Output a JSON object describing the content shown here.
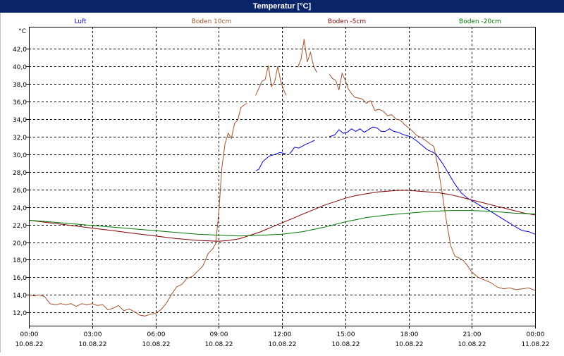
{
  "window": {
    "title": "Temperatur [°C]"
  },
  "chart_data": {
    "type": "line",
    "title": "Temperatur [°C]",
    "ylabel": "°C",
    "ylim": [
      10.5,
      44.5
    ],
    "y_ticks": [
      "12,0",
      "14,0",
      "16,0",
      "18,0",
      "20,0",
      "22,0",
      "24,0",
      "26,0",
      "28,0",
      "30,0",
      "32,0",
      "34,0",
      "36,0",
      "38,0",
      "40,0",
      "42,0"
    ],
    "y_tick_values": [
      12,
      14,
      16,
      18,
      20,
      22,
      24,
      26,
      28,
      30,
      32,
      34,
      36,
      38,
      40,
      42
    ],
    "xlim": [
      0,
      24
    ],
    "x_ticks": [
      {
        "time": "00:00",
        "date": "10.08.22",
        "h": 0
      },
      {
        "time": "03:00",
        "date": "10.08.22",
        "h": 3
      },
      {
        "time": "06:00",
        "date": "10.08.22",
        "h": 6
      },
      {
        "time": "09:00",
        "date": "10.08.22",
        "h": 9
      },
      {
        "time": "12:00",
        "date": "10.08.22",
        "h": 12
      },
      {
        "time": "15:00",
        "date": "10.08.22",
        "h": 15
      },
      {
        "time": "18:00",
        "date": "10.08.22",
        "h": 18
      },
      {
        "time": "21:00",
        "date": "10.08.22",
        "h": 21
      },
      {
        "time": "00:00",
        "date": "11.08.22",
        "h": 24
      }
    ],
    "grid": true,
    "legend_position": "top",
    "series": [
      {
        "name": "Luft",
        "color": "#0000cc",
        "segments": [
          [
            [
              10.75,
              28.1
            ],
            [
              10.9,
              28.3
            ],
            [
              11.1,
              29.2
            ],
            [
              11.4,
              29.8
            ],
            [
              11.7,
              30.0
            ],
            [
              11.9,
              30.2
            ],
            [
              12.1,
              30.1
            ],
            [
              12.2,
              30.0
            ]
          ],
          [
            [
              12.35,
              30.0
            ],
            [
              12.6,
              30.8
            ],
            [
              12.8,
              30.7
            ],
            [
              13.1,
              31.1
            ],
            [
              13.3,
              31.3
            ],
            [
              13.55,
              31.6
            ]
          ],
          [
            [
              14.25,
              32.0
            ],
            [
              14.5,
              32.2
            ],
            [
              14.7,
              32.8
            ],
            [
              14.9,
              32.4
            ],
            [
              15.1,
              32.5
            ],
            [
              15.3,
              32.9
            ],
            [
              15.5,
              32.6
            ],
            [
              15.7,
              32.9
            ],
            [
              15.9,
              32.5
            ],
            [
              16.1,
              32.8
            ],
            [
              16.3,
              33.1
            ],
            [
              16.5,
              33.0
            ],
            [
              16.7,
              32.6
            ],
            [
              16.9,
              32.6
            ],
            [
              17.1,
              32.9
            ],
            [
              17.3,
              32.6
            ],
            [
              17.5,
              32.5
            ],
            [
              17.8,
              32.2
            ],
            [
              18.1,
              32.0
            ],
            [
              18.4,
              31.5
            ],
            [
              18.7,
              30.9
            ],
            [
              18.9,
              30.5
            ],
            [
              19.1,
              30.3
            ],
            [
              19.3,
              30.0
            ],
            [
              19.6,
              29.0
            ],
            [
              19.9,
              27.8
            ],
            [
              20.2,
              26.6
            ],
            [
              20.5,
              25.6
            ],
            [
              20.8,
              25.0
            ],
            [
              21.1,
              24.6
            ],
            [
              21.5,
              24.0
            ],
            [
              21.9,
              23.5
            ],
            [
              22.3,
              22.9
            ],
            [
              22.7,
              22.3
            ],
            [
              23.1,
              21.7
            ],
            [
              23.4,
              21.3
            ],
            [
              23.7,
              21.2
            ],
            [
              24.0,
              20.9
            ]
          ]
        ]
      },
      {
        "name": "Boden 10cm",
        "color": "#a0522d",
        "segments": [
          [
            [
              0,
              14.0
            ],
            [
              0.25,
              13.9
            ],
            [
              0.5,
              14.0
            ],
            [
              0.75,
              13.8
            ],
            [
              1.0,
              13.0
            ],
            [
              1.25,
              12.9
            ],
            [
              1.5,
              13.0
            ],
            [
              1.75,
              12.9
            ],
            [
              2.0,
              13.0
            ],
            [
              2.25,
              12.7
            ],
            [
              2.5,
              13.0
            ],
            [
              2.75,
              12.9
            ],
            [
              3.0,
              13.0
            ],
            [
              3.25,
              12.8
            ],
            [
              3.5,
              12.9
            ],
            [
              3.75,
              12.3
            ],
            [
              4.0,
              12.5
            ],
            [
              4.25,
              12.8
            ],
            [
              4.5,
              12.2
            ],
            [
              4.75,
              12.4
            ],
            [
              5.0,
              12.1
            ],
            [
              5.25,
              11.7
            ],
            [
              5.5,
              11.6
            ],
            [
              5.75,
              11.8
            ],
            [
              6.0,
              11.9
            ],
            [
              6.25,
              12.3
            ],
            [
              6.5,
              13.0
            ],
            [
              6.75,
              14.0
            ],
            [
              7.0,
              14.9
            ],
            [
              7.25,
              15.2
            ],
            [
              7.5,
              15.9
            ],
            [
              7.75,
              16.1
            ],
            [
              8.0,
              16.7
            ],
            [
              8.25,
              17.3
            ],
            [
              8.5,
              18.7
            ],
            [
              8.7,
              19.2
            ],
            [
              8.85,
              19.8
            ],
            [
              9.0,
              23.3
            ],
            [
              9.15,
              28.5
            ],
            [
              9.3,
              31.2
            ],
            [
              9.45,
              32.4
            ],
            [
              9.6,
              31.8
            ],
            [
              9.75,
              33.5
            ],
            [
              9.9,
              33.9
            ],
            [
              10.05,
              35.3
            ],
            [
              10.2,
              35.6
            ],
            [
              10.35,
              35.8
            ]
          ],
          [
            [
              10.75,
              36.7
            ],
            [
              10.9,
              37.5
            ],
            [
              11.05,
              38.3
            ],
            [
              11.2,
              38.5
            ],
            [
              11.35,
              40.1
            ],
            [
              11.5,
              37.7
            ],
            [
              11.65,
              38.2
            ],
            [
              11.8,
              40.0
            ],
            [
              11.95,
              38.2
            ],
            [
              12.1,
              37.2
            ],
            [
              12.2,
              36.7
            ]
          ],
          [
            [
              12.75,
              39.9
            ],
            [
              12.9,
              40.8
            ],
            [
              13.05,
              43.1
            ],
            [
              13.2,
              40.5
            ],
            [
              13.35,
              41.6
            ],
            [
              13.5,
              40.0
            ],
            [
              13.65,
              39.3
            ]
          ],
          [
            [
              14.25,
              39.1
            ],
            [
              14.4,
              38.6
            ],
            [
              14.55,
              38.4
            ],
            [
              14.7,
              37.3
            ],
            [
              14.85,
              39.2
            ],
            [
              15.0,
              38.4
            ],
            [
              15.15,
              37.4
            ],
            [
              15.3,
              36.9
            ],
            [
              15.45,
              36.5
            ],
            [
              15.6,
              36.4
            ],
            [
              15.8,
              36.3
            ],
            [
              16.0,
              35.8
            ],
            [
              16.2,
              36.1
            ],
            [
              16.4,
              35.0
            ],
            [
              16.6,
              35.1
            ],
            [
              16.8,
              34.9
            ],
            [
              17.0,
              34.4
            ],
            [
              17.2,
              34.5
            ],
            [
              17.4,
              34.0
            ],
            [
              17.6,
              33.9
            ],
            [
              17.8,
              33.4
            ],
            [
              18.0,
              33.0
            ],
            [
              18.2,
              32.6
            ],
            [
              18.4,
              32.1
            ],
            [
              18.6,
              31.9
            ],
            [
              18.8,
              31.6
            ],
            [
              19.0,
              31.2
            ],
            [
              19.2,
              30.9
            ],
            [
              19.4,
              28.5
            ],
            [
              19.6,
              25.5
            ],
            [
              19.8,
              22.3
            ],
            [
              20.0,
              19.6
            ],
            [
              20.2,
              18.4
            ],
            [
              20.4,
              18.2
            ],
            [
              20.6,
              17.9
            ],
            [
              20.8,
              17.3
            ],
            [
              21.0,
              16.6
            ],
            [
              21.3,
              16.0
            ],
            [
              21.6,
              15.7
            ],
            [
              21.9,
              15.4
            ],
            [
              22.2,
              14.9
            ],
            [
              22.5,
              14.7
            ],
            [
              22.8,
              14.8
            ],
            [
              23.1,
              14.6
            ],
            [
              23.4,
              14.7
            ],
            [
              23.7,
              14.8
            ],
            [
              24.0,
              14.5
            ]
          ]
        ]
      },
      {
        "name": "Boden -5cm",
        "color": "#800000",
        "segments": [
          [
            [
              0,
              22.5
            ],
            [
              1,
              22.2
            ],
            [
              2,
              21.9
            ],
            [
              3,
              21.6
            ],
            [
              4,
              21.3
            ],
            [
              5,
              21.0
            ],
            [
              6,
              20.7
            ],
            [
              7,
              20.4
            ],
            [
              8,
              20.2
            ],
            [
              9,
              20.1
            ],
            [
              9.5,
              20.2
            ],
            [
              10,
              20.4
            ],
            [
              10.5,
              20.8
            ],
            [
              11,
              21.2
            ],
            [
              11.5,
              21.7
            ],
            [
              12,
              22.2
            ],
            [
              12.5,
              22.7
            ],
            [
              13,
              23.2
            ],
            [
              13.5,
              23.7
            ],
            [
              14,
              24.2
            ],
            [
              14.5,
              24.6
            ],
            [
              15,
              25.0
            ],
            [
              15.5,
              25.3
            ],
            [
              16,
              25.5
            ],
            [
              16.5,
              25.7
            ],
            [
              17,
              25.8
            ],
            [
              17.5,
              25.9
            ],
            [
              18,
              25.9
            ],
            [
              18.5,
              25.8
            ],
            [
              19,
              25.7
            ],
            [
              19.5,
              25.6
            ],
            [
              20,
              25.4
            ],
            [
              20.5,
              25.1
            ],
            [
              21,
              24.8
            ],
            [
              21.5,
              24.5
            ],
            [
              22,
              24.2
            ],
            [
              22.5,
              23.9
            ],
            [
              23,
              23.6
            ],
            [
              23.5,
              23.3
            ],
            [
              24,
              23.1
            ]
          ]
        ]
      },
      {
        "name": "Boden -20cm",
        "color": "#007700",
        "segments": [
          [
            [
              0,
              22.5
            ],
            [
              1,
              22.3
            ],
            [
              2,
              22.1
            ],
            [
              3,
              21.9
            ],
            [
              4,
              21.7
            ],
            [
              5,
              21.5
            ],
            [
              6,
              21.3
            ],
            [
              7,
              21.1
            ],
            [
              8,
              20.9
            ],
            [
              9,
              20.8
            ],
            [
              10,
              20.7
            ],
            [
              11,
              20.8
            ],
            [
              12,
              20.9
            ],
            [
              13,
              21.2
            ],
            [
              14,
              21.7
            ],
            [
              15,
              22.3
            ],
            [
              16,
              22.8
            ],
            [
              17,
              23.1
            ],
            [
              18,
              23.3
            ],
            [
              19,
              23.5
            ],
            [
              20,
              23.6
            ],
            [
              21,
              23.6
            ],
            [
              22,
              23.5
            ],
            [
              23,
              23.3
            ],
            [
              24,
              23.2
            ]
          ]
        ]
      }
    ]
  }
}
